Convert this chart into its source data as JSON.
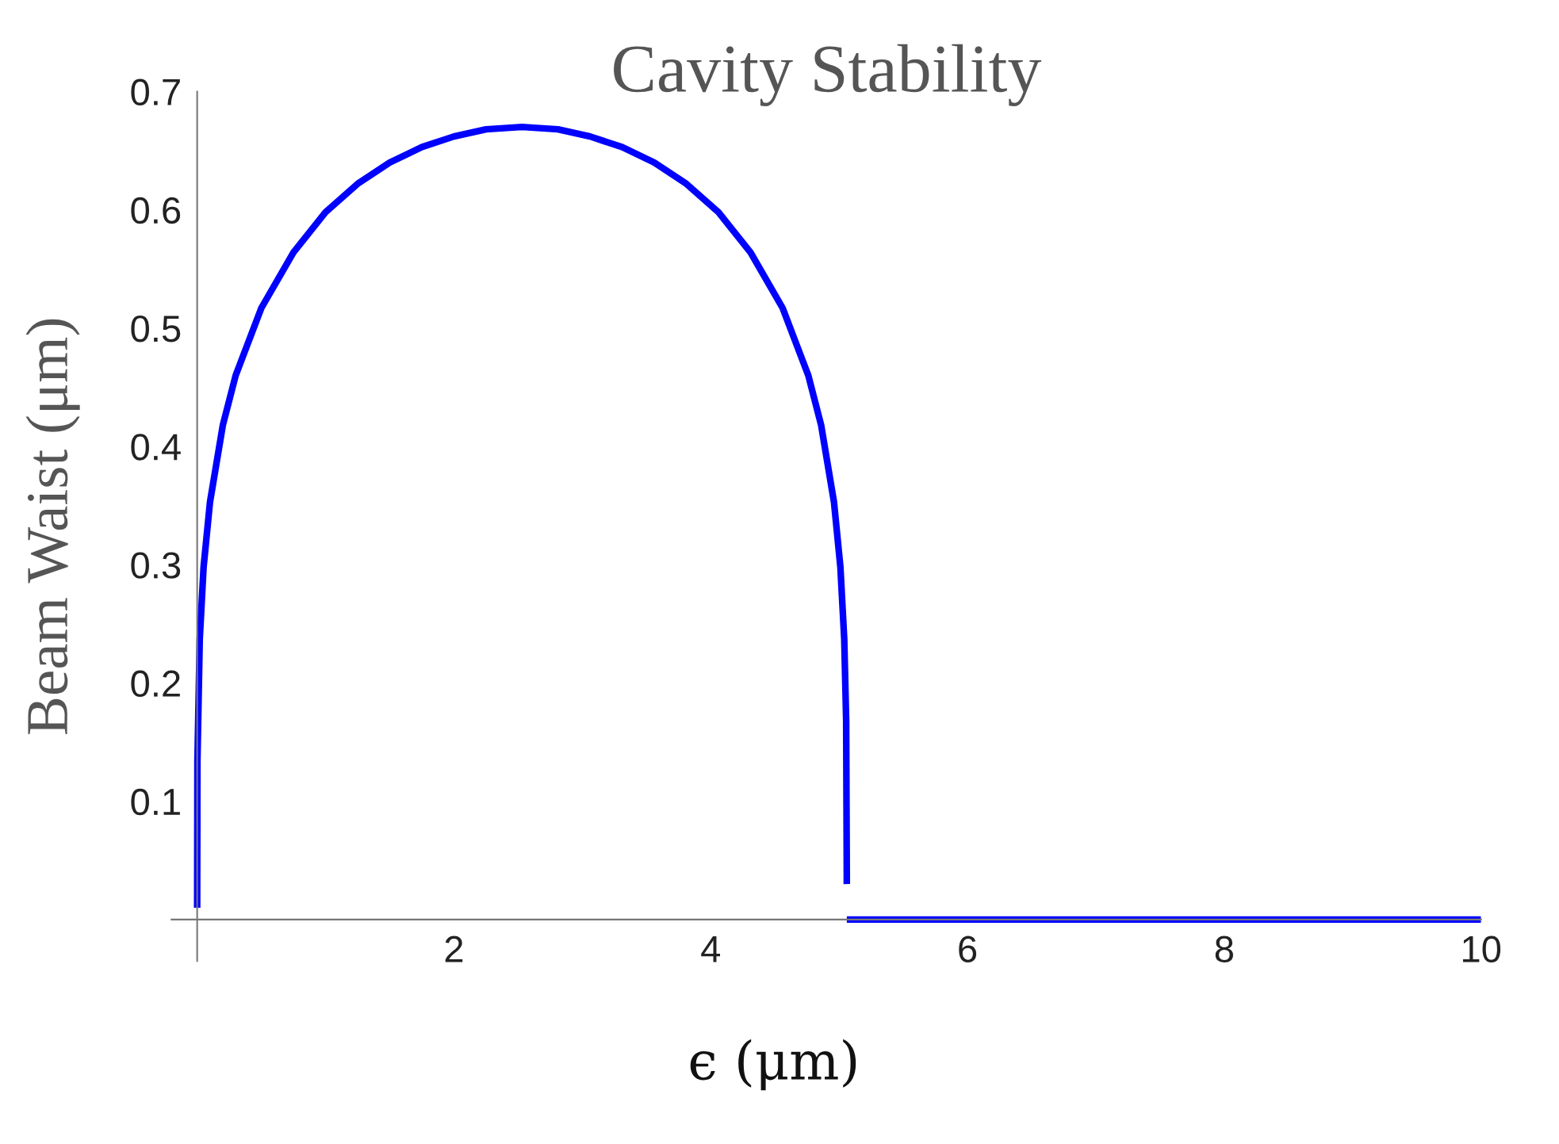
{
  "chart_data": {
    "type": "line",
    "title": "Cavity Stability",
    "xlabel": "ϵ (μm)",
    "ylabel": "Beam Waist (μm)",
    "xlim": [
      -0.2,
      10
    ],
    "ylim": [
      -0.035,
      0.7
    ],
    "xticks": [
      2,
      4,
      6,
      8,
      10
    ],
    "yticks": [
      0.1,
      0.2,
      0.3,
      0.4,
      0.5,
      0.6,
      0.7
    ],
    "grid": false,
    "marker": "none",
    "line_style": "solid",
    "series": [
      {
        "color": "#0000ff",
        "x": [
          0,
          0.002,
          0.02,
          0.05,
          0.1,
          0.2,
          0.3,
          0.5,
          0.75,
          1,
          1.25,
          1.5,
          1.75,
          2,
          2.25,
          2.53,
          2.81,
          3.06,
          3.31,
          3.56,
          3.81,
          4.06,
          4.31,
          4.56,
          4.76,
          4.86,
          4.96,
          5.01,
          5.04,
          5.055,
          5.06
        ],
        "values": [
          0.01,
          0.134,
          0.237,
          0.298,
          0.353,
          0.418,
          0.46,
          0.517,
          0.564,
          0.598,
          0.622,
          0.64,
          0.653,
          0.662,
          0.668,
          0.67,
          0.668,
          0.662,
          0.653,
          0.64,
          0.622,
          0.598,
          0.564,
          0.517,
          0.46,
          0.418,
          0.353,
          0.298,
          0.237,
          0.168,
          0.03
        ]
      },
      {
        "color": "#0000ff",
        "x": [
          5.06,
          10
        ],
        "values": [
          0,
          0
        ]
      }
    ]
  }
}
